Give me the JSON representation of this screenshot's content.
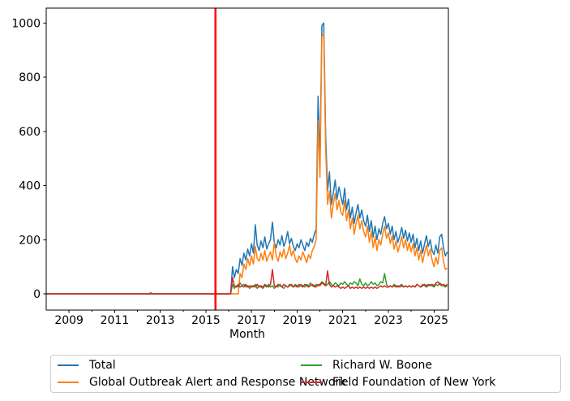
{
  "figure": {
    "background": "#ffffff"
  },
  "chart_data": {
    "type": "line",
    "title": "",
    "xlabel": "Month",
    "ylabel": "",
    "grid": false,
    "xlim": [
      2008.0,
      2025.63
    ],
    "ylim": [
      -60,
      1055
    ],
    "x_major_ticks": [
      2009,
      2011,
      2013,
      2015,
      2017,
      2019,
      2021,
      2023,
      2025
    ],
    "x_major_tick_labels": [
      "2009",
      "2011",
      "2013",
      "2015",
      "2017",
      "2019",
      "2021",
      "2023",
      "2025"
    ],
    "x_minor_ticks": [
      2010,
      2012,
      2014,
      2016,
      2018,
      2020,
      2022,
      2024
    ],
    "y_ticks": [
      0,
      200,
      400,
      600,
      800,
      1000
    ],
    "y_tick_labels": [
      "0",
      "200",
      "400",
      "600",
      "800",
      "1000"
    ],
    "vline": {
      "x": 2015.42,
      "color": "#ff0000"
    },
    "legend": {
      "position": "below-chart",
      "columns": 2,
      "entries": [
        "Total",
        "Global Outbreak Alert and Response Network",
        "Richard W. Boone",
        "Field Foundation of New York"
      ]
    },
    "series": [
      {
        "name": "Total",
        "color": "#1f77b4",
        "prefix_points": [
          [
            2008.0,
            0
          ],
          [
            2012.5,
            0
          ],
          [
            2012.583,
            4
          ],
          [
            2012.667,
            0
          ]
        ],
        "monthly_start": 2016.0,
        "monthly_values": [
          0,
          0,
          100,
          60,
          90,
          75,
          130,
          105,
          150,
          125,
          165,
          140,
          185,
          150,
          255,
          180,
          160,
          195,
          170,
          210,
          165,
          185,
          200,
          265,
          190,
          170,
          200,
          180,
          215,
          175,
          195,
          230,
          185,
          205,
          175,
          160,
          185,
          170,
          200,
          180,
          160,
          190,
          175,
          205,
          190,
          220,
          240,
          730,
          480,
          990,
          1000,
          590,
          380,
          450,
          330,
          370,
          420,
          350,
          395,
          360,
          330,
          390,
          310,
          350,
          280,
          320,
          260,
          300,
          330,
          280,
          310,
          270,
          250,
          290,
          230,
          270,
          210,
          250,
          200,
          240,
          220,
          260,
          285,
          240,
          260,
          220,
          250,
          200,
          230,
          190,
          215,
          245,
          205,
          235,
          195,
          225,
          190,
          220,
          170,
          205,
          160,
          195,
          150,
          185,
          215,
          175,
          200,
          160,
          145,
          180,
          150,
          210,
          220,
          170,
          140,
          155
        ]
      },
      {
        "name": "Global Outbreak Alert and Response Network",
        "color": "#ff7f0e",
        "prefix_points": [
          [
            2008.0,
            0
          ]
        ],
        "monthly_start": 2016.0,
        "monthly_values": [
          0,
          0,
          0,
          0,
          0,
          0,
          75,
          60,
          110,
          90,
          130,
          105,
          140,
          110,
          175,
          130,
          120,
          150,
          125,
          160,
          120,
          140,
          155,
          125,
          190,
          140,
          120,
          155,
          135,
          165,
          130,
          150,
          180,
          140,
          160,
          130,
          115,
          140,
          125,
          155,
          135,
          115,
          145,
          130,
          160,
          175,
          200,
          640,
          430,
          950,
          960,
          540,
          330,
          380,
          280,
          330,
          370,
          310,
          345,
          300,
          290,
          345,
          270,
          310,
          240,
          280,
          220,
          260,
          290,
          240,
          270,
          230,
          210,
          250,
          190,
          230,
          170,
          210,
          160,
          200,
          180,
          220,
          250,
          205,
          225,
          185,
          215,
          165,
          195,
          155,
          180,
          210,
          170,
          200,
          160,
          190,
          155,
          185,
          140,
          170,
          125,
          160,
          115,
          150,
          180,
          140,
          165,
          125,
          100,
          135,
          110,
          160,
          170,
          120,
          90,
          95
        ]
      },
      {
        "name": "Richard W. Boone",
        "color": "#2ca02c",
        "prefix_points": [
          [
            2008.0,
            0
          ]
        ],
        "monthly_start": 2016.0,
        "monthly_values": [
          0,
          0,
          35,
          20,
          30,
          25,
          40,
          30,
          35,
          25,
          30,
          20,
          30,
          25,
          35,
          20,
          30,
          25,
          20,
          30,
          25,
          35,
          25,
          30,
          20,
          30,
          25,
          35,
          25,
          20,
          30,
          25,
          35,
          30,
          25,
          35,
          30,
          25,
          35,
          30,
          25,
          35,
          30,
          40,
          30,
          25,
          35,
          30,
          35,
          45,
          40,
          30,
          35,
          45,
          35,
          30,
          40,
          35,
          30,
          40,
          35,
          45,
          35,
          30,
          40,
          35,
          45,
          40,
          30,
          55,
          35,
          30,
          40,
          30,
          35,
          45,
          35,
          40,
          30,
          35,
          45,
          40,
          75,
          35,
          25,
          30,
          25,
          35,
          30,
          25,
          30,
          35,
          25,
          30,
          25,
          30,
          25,
          30,
          25,
          35,
          30,
          25,
          35,
          30,
          25,
          30,
          35,
          30,
          25,
          35,
          30,
          40,
          35,
          30,
          25,
          30
        ]
      },
      {
        "name": "Field Foundation of New York",
        "color": "#d62728",
        "prefix_points": [
          [
            2008.0,
            0
          ]
        ],
        "monthly_start": 2016.0,
        "monthly_values": [
          0,
          0,
          60,
          30,
          25,
          35,
          25,
          30,
          25,
          35,
          25,
          30,
          25,
          30,
          25,
          35,
          25,
          30,
          25,
          35,
          30,
          25,
          35,
          90,
          30,
          25,
          35,
          30,
          25,
          35,
          30,
          25,
          30,
          35,
          25,
          30,
          25,
          35,
          30,
          25,
          35,
          30,
          25,
          30,
          35,
          30,
          25,
          35,
          30,
          40,
          35,
          30,
          85,
          35,
          25,
          30,
          25,
          30,
          25,
          20,
          25,
          20,
          25,
          30,
          20,
          25,
          20,
          25,
          20,
          25,
          20,
          25,
          20,
          25,
          20,
          25,
          20,
          25,
          20,
          25,
          30,
          25,
          30,
          25,
          25,
          30,
          25,
          30,
          25,
          30,
          25,
          30,
          25,
          30,
          25,
          30,
          25,
          30,
          25,
          35,
          30,
          25,
          30,
          35,
          30,
          35,
          30,
          35,
          30,
          40,
          45,
          35,
          30,
          35,
          30,
          35
        ]
      }
    ]
  }
}
